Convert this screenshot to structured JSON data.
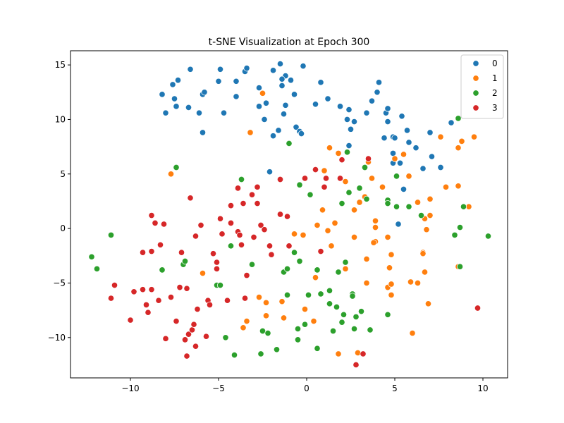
{
  "chart_data": {
    "type": "scatter",
    "title": "t-SNE Visualization at Epoch 300",
    "xlabel": "",
    "ylabel": "",
    "xlim": [
      -13.4,
      11.4
    ],
    "ylim": [
      -13.7,
      16.3
    ],
    "xticks": [
      -10,
      -5,
      0,
      5,
      10
    ],
    "yticks": [
      -10,
      -5,
      0,
      5,
      10,
      15
    ],
    "xtick_labels": [
      "−10",
      "−5",
      "0",
      "5",
      "10"
    ],
    "ytick_labels": [
      "−10",
      "−5",
      "0",
      "5",
      "10",
      "15"
    ],
    "grid": false,
    "legend_position": "top-right",
    "series": [
      {
        "name": "0",
        "color": "#1f77b4",
        "points": [
          [
            -8.2,
            12.3
          ],
          [
            -7.6,
            13.2
          ],
          [
            -7.3,
            13.6
          ],
          [
            -7.5,
            11.9
          ],
          [
            -7.4,
            11.2
          ],
          [
            -8.0,
            10.6
          ],
          [
            -6.6,
            14.6
          ],
          [
            -6.7,
            11.1
          ],
          [
            -5.9,
            12.3
          ],
          [
            -5.8,
            12.5
          ],
          [
            -6.1,
            10.6
          ],
          [
            -5.9,
            8.8
          ],
          [
            -5.0,
            13.5
          ],
          [
            -4.9,
            14.6
          ],
          [
            -4.7,
            10.6
          ],
          [
            -4.0,
            13.5
          ],
          [
            -4.0,
            12.1
          ],
          [
            -3.5,
            14.4
          ],
          [
            -3.4,
            14.7
          ],
          [
            -2.7,
            12.9
          ],
          [
            -2.7,
            11.2
          ],
          [
            -2.4,
            10.0
          ],
          [
            -2.3,
            11.5
          ],
          [
            -1.9,
            14.5
          ],
          [
            -1.5,
            15.1
          ],
          [
            -1.2,
            14.0
          ],
          [
            -1.4,
            13.7
          ],
          [
            -1.4,
            13.1
          ],
          [
            -1.2,
            11.3
          ],
          [
            -1.3,
            10.5
          ],
          [
            -1.6,
            9.0
          ],
          [
            -1.9,
            8.5
          ],
          [
            -0.9,
            13.6
          ],
          [
            -0.7,
            12.3
          ],
          [
            -0.6,
            9.3
          ],
          [
            -0.4,
            8.9
          ],
          [
            -0.3,
            8.7
          ],
          [
            -0.2,
            14.9
          ],
          [
            0.5,
            11.4
          ],
          [
            0.8,
            13.4
          ],
          [
            1.2,
            11.9
          ],
          [
            1.9,
            11.2
          ],
          [
            2.3,
            10.0
          ],
          [
            2.4,
            10.9
          ],
          [
            2.5,
            9.1
          ],
          [
            2.7,
            9.8
          ],
          [
            2.4,
            7.6
          ],
          [
            -2.1,
            5.2
          ],
          [
            3.4,
            10.6
          ],
          [
            3.7,
            11.7
          ],
          [
            4.0,
            12.5
          ],
          [
            4.1,
            13.4
          ],
          [
            4.4,
            8.3
          ],
          [
            4.5,
            10.6
          ],
          [
            4.6,
            11.0
          ],
          [
            4.6,
            9.8
          ],
          [
            4.9,
            8.4
          ],
          [
            5.0,
            8.3
          ],
          [
            4.9,
            6.9
          ],
          [
            4.9,
            6.0
          ],
          [
            5.3,
            6.0
          ],
          [
            5.4,
            10.3
          ],
          [
            5.7,
            9.0
          ],
          [
            5.8,
            7.9
          ],
          [
            6.2,
            7.4
          ],
          [
            6.6,
            5.5
          ],
          [
            7.0,
            8.8
          ],
          [
            7.1,
            6.6
          ],
          [
            7.6,
            5.6
          ],
          [
            8.2,
            9.7
          ],
          [
            5.5,
            3.6
          ],
          [
            5.2,
            0.4
          ]
        ]
      },
      {
        "name": "1",
        "color": "#ff7f0e",
        "points": [
          [
            -2.5,
            12.4
          ],
          [
            -3.2,
            8.8
          ],
          [
            -7.7,
            5.0
          ],
          [
            -5.9,
            -4.1
          ],
          [
            -3.4,
            -8.5
          ],
          [
            -3.6,
            -9.1
          ],
          [
            -2.7,
            -6.3
          ],
          [
            -2.3,
            -6.8
          ],
          [
            -2.3,
            -8.0
          ],
          [
            -1.4,
            -6.7
          ],
          [
            -1.3,
            -8.2
          ],
          [
            -0.7,
            -0.5
          ],
          [
            -0.2,
            -0.6
          ],
          [
            -0.1,
            -7.4
          ],
          [
            0.4,
            -8.5
          ],
          [
            0.5,
            -4.5
          ],
          [
            0.6,
            0.3
          ],
          [
            0.9,
            1.7
          ],
          [
            1.0,
            5.3
          ],
          [
            1.3,
            7.4
          ],
          [
            1.2,
            -0.2
          ],
          [
            1.4,
            -1.6
          ],
          [
            1.6,
            0.5
          ],
          [
            1.8,
            6.9
          ],
          [
            2.2,
            4.3
          ],
          [
            2.2,
            -3.7
          ],
          [
            2.7,
            1.7
          ],
          [
            2.7,
            -0.8
          ],
          [
            3.0,
            2.4
          ],
          [
            2.9,
            -11.4
          ],
          [
            3.3,
            2.9
          ],
          [
            3.4,
            -2.8
          ],
          [
            3.4,
            -5.0
          ],
          [
            3.5,
            6.1
          ],
          [
            3.7,
            4.6
          ],
          [
            3.9,
            0.1
          ],
          [
            3.9,
            -1.2
          ],
          [
            3.8,
            -1.3
          ],
          [
            3.9,
            0.7
          ],
          [
            4.3,
            3.8
          ],
          [
            4.6,
            -0.8
          ],
          [
            4.7,
            -3.6
          ],
          [
            4.6,
            -5.4
          ],
          [
            4.8,
            -2.4
          ],
          [
            4.8,
            -5.1
          ],
          [
            4.8,
            -6.1
          ],
          [
            5.0,
            6.4
          ],
          [
            5.5,
            6.8
          ],
          [
            5.8,
            4.8
          ],
          [
            5.9,
            -4.9
          ],
          [
            6.0,
            -9.6
          ],
          [
            6.3,
            2.4
          ],
          [
            6.3,
            -5.0
          ],
          [
            6.6,
            -2.2
          ],
          [
            6.6,
            -2.3
          ],
          [
            6.7,
            -4.0
          ],
          [
            6.7,
            0.9
          ],
          [
            6.8,
            -0.1
          ],
          [
            6.9,
            -6.9
          ],
          [
            7.0,
            2.7
          ],
          [
            7.0,
            1.2
          ],
          [
            7.6,
            8.4
          ],
          [
            7.9,
            3.8
          ],
          [
            8.6,
            7.4
          ],
          [
            8.6,
            3.9
          ],
          [
            8.6,
            -3.5
          ],
          [
            8.8,
            8.0
          ],
          [
            9.2,
            2.0
          ],
          [
            9.5,
            8.4
          ],
          [
            1.8,
            -11.5
          ]
        ]
      },
      {
        "name": "2",
        "color": "#2ca02c",
        "points": [
          [
            -12.2,
            -2.6
          ],
          [
            -11.9,
            -3.7
          ],
          [
            -11.1,
            -0.6
          ],
          [
            -8.2,
            -3.8
          ],
          [
            -7.4,
            5.6
          ],
          [
            -7.0,
            -3.3
          ],
          [
            -6.9,
            -3.0
          ],
          [
            -5.1,
            -5.2
          ],
          [
            -4.9,
            -5.2
          ],
          [
            -4.6,
            -10.0
          ],
          [
            -4.3,
            -1.6
          ],
          [
            -4.1,
            -11.6
          ],
          [
            -3.7,
            4.5
          ],
          [
            -3.1,
            -3.3
          ],
          [
            -2.6,
            -11.5
          ],
          [
            -2.5,
            -9.4
          ],
          [
            -2.2,
            -9.6
          ],
          [
            -1.7,
            -11.1
          ],
          [
            -1.3,
            -4.0
          ],
          [
            -1.1,
            -3.7
          ],
          [
            -1.1,
            -6.1
          ],
          [
            -1.0,
            7.8
          ],
          [
            -0.7,
            -2.2
          ],
          [
            -0.5,
            -10.2
          ],
          [
            -0.5,
            -9.2
          ],
          [
            -0.4,
            -3.0
          ],
          [
            -0.4,
            4.0
          ],
          [
            -0.1,
            -8.8
          ],
          [
            0.1,
            -6.1
          ],
          [
            0.2,
            3.1
          ],
          [
            0.6,
            -3.8
          ],
          [
            0.6,
            -11.0
          ],
          [
            0.8,
            -6.0
          ],
          [
            1.3,
            -5.7
          ],
          [
            1.3,
            -6.9
          ],
          [
            1.5,
            -9.4
          ],
          [
            1.7,
            -7.2
          ],
          [
            1.8,
            -4.0
          ],
          [
            2.0,
            2.3
          ],
          [
            2.0,
            -8.6
          ],
          [
            2.1,
            -7.9
          ],
          [
            2.2,
            -3.1
          ],
          [
            2.3,
            7.0
          ],
          [
            2.4,
            3.3
          ],
          [
            2.6,
            -6.0
          ],
          [
            2.6,
            -6.2
          ],
          [
            2.7,
            -9.2
          ],
          [
            2.8,
            -8.1
          ],
          [
            3.0,
            3.7
          ],
          [
            3.1,
            -7.6
          ],
          [
            3.3,
            5.6
          ],
          [
            3.4,
            2.7
          ],
          [
            3.6,
            -9.3
          ],
          [
            4.6,
            2.6
          ],
          [
            4.6,
            2.3
          ],
          [
            4.6,
            -7.9
          ],
          [
            5.1,
            2.0
          ],
          [
            5.1,
            4.8
          ],
          [
            5.8,
            2.0
          ],
          [
            6.5,
            1.2
          ],
          [
            8.4,
            -0.6
          ],
          [
            8.6,
            10.1
          ],
          [
            8.7,
            -3.5
          ],
          [
            8.7,
            0.1
          ],
          [
            8.9,
            2.0
          ],
          [
            10.3,
            -0.7
          ]
        ]
      },
      {
        "name": "3",
        "color": "#d62728",
        "points": [
          [
            -11.1,
            -6.4
          ],
          [
            -10.9,
            -5.2
          ],
          [
            -10.0,
            -8.4
          ],
          [
            -9.8,
            -5.8
          ],
          [
            -9.3,
            -5.6
          ],
          [
            -9.3,
            -2.2
          ],
          [
            -9.1,
            -7.0
          ],
          [
            -9.0,
            -7.7
          ],
          [
            -8.8,
            -2.1
          ],
          [
            -8.8,
            -5.6
          ],
          [
            -8.8,
            1.2
          ],
          [
            -8.6,
            0.5
          ],
          [
            -8.4,
            -6.6
          ],
          [
            -8.3,
            -1.5
          ],
          [
            -8.1,
            0.4
          ],
          [
            -8.0,
            -10.1
          ],
          [
            -7.7,
            -6.3
          ],
          [
            -7.4,
            -8.5
          ],
          [
            -7.2,
            -5.4
          ],
          [
            -7.1,
            -2.2
          ],
          [
            -6.9,
            -10.2
          ],
          [
            -6.8,
            -11.7
          ],
          [
            -6.8,
            -5.5
          ],
          [
            -6.7,
            -9.7
          ],
          [
            -6.6,
            2.8
          ],
          [
            -6.5,
            -9.3
          ],
          [
            -6.4,
            -8.8
          ],
          [
            -6.3,
            -10.8
          ],
          [
            -6.3,
            -0.7
          ],
          [
            -6.2,
            -7.4
          ],
          [
            -6.0,
            0.3
          ],
          [
            -5.7,
            -9.9
          ],
          [
            -5.6,
            -6.6
          ],
          [
            -5.5,
            -7.0
          ],
          [
            -5.3,
            -2.3
          ],
          [
            -5.1,
            -3.1
          ],
          [
            -5.1,
            -3.7
          ],
          [
            -4.9,
            0.9
          ],
          [
            -4.8,
            -0.5
          ],
          [
            -4.5,
            -6.6
          ],
          [
            -4.3,
            0.5
          ],
          [
            -4.3,
            2.1
          ],
          [
            -3.9,
            3.7
          ],
          [
            -3.9,
            -0.3
          ],
          [
            -3.8,
            -0.6
          ],
          [
            -3.7,
            -1.5
          ],
          [
            -3.6,
            2.3
          ],
          [
            -3.5,
            -6.4
          ],
          [
            -3.4,
            -4.3
          ],
          [
            -3.1,
            3.1
          ],
          [
            -3.0,
            -0.8
          ],
          [
            -2.8,
            3.8
          ],
          [
            -2.8,
            2.3
          ],
          [
            -2.6,
            0.3
          ],
          [
            -2.4,
            -0.1
          ],
          [
            -2.1,
            -1.6
          ],
          [
            -2.0,
            -2.4
          ],
          [
            -1.5,
            4.5
          ],
          [
            -1.5,
            1.3
          ],
          [
            -1.1,
            1.1
          ],
          [
            -1.0,
            -1.6
          ],
          [
            -0.1,
            4.6
          ],
          [
            0.5,
            5.4
          ],
          [
            0.8,
            -2.1
          ],
          [
            1.0,
            3.8
          ],
          [
            1.1,
            4.6
          ],
          [
            1.9,
            4.6
          ],
          [
            2.0,
            6.3
          ],
          [
            3.5,
            6.4
          ],
          [
            3.2,
            -11.5
          ],
          [
            2.8,
            -12.5
          ],
          [
            9.7,
            -7.3
          ]
        ]
      }
    ]
  }
}
